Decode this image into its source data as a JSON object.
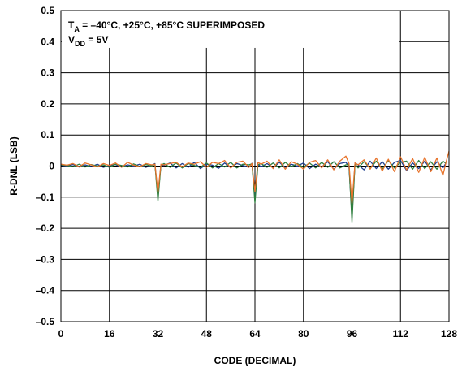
{
  "chart_data": {
    "type": "line",
    "title": "",
    "xlabel": "CODE (DECIMAL)",
    "ylabel": "R-DNL (LSB)",
    "xlim": [
      0,
      128
    ],
    "ylim": [
      -0.5,
      0.5
    ],
    "xticks": [
      0,
      16,
      32,
      48,
      64,
      80,
      96,
      112,
      128
    ],
    "xtick_labels": [
      "0",
      "16",
      "32",
      "48",
      "64",
      "80",
      "96",
      "112",
      "128"
    ],
    "yticks": [
      0.5,
      0.4,
      0.3,
      0.2,
      0.1,
      0,
      -0.1,
      -0.2,
      -0.3,
      -0.4,
      -0.5
    ],
    "ytick_labels": [
      "0.5",
      "0.4",
      "0.3",
      "0.2",
      "0.1",
      "0",
      "–0.1",
      "–0.2",
      "–0.3",
      "–0.4",
      "–0.5"
    ],
    "grid": true,
    "annotation": {
      "line1_prefix": "T",
      "line1_sub": "A",
      "line1_rest": " = –40°C, +25°C, +85°C SUPERIMPOSED",
      "line2_prefix": "V",
      "line2_sub": "DD",
      "line2_rest": " = 5V"
    },
    "series": [
      {
        "color": "#1f3f8f",
        "x": [
          0,
          2,
          4,
          6,
          8,
          10,
          12,
          14,
          16,
          18,
          20,
          22,
          24,
          26,
          28,
          30,
          31,
          32,
          33,
          34,
          36,
          38,
          40,
          42,
          44,
          46,
          48,
          50,
          52,
          54,
          56,
          58,
          60,
          62,
          63,
          64,
          65,
          66,
          68,
          70,
          72,
          74,
          76,
          78,
          80,
          82,
          84,
          86,
          88,
          90,
          92,
          94,
          95,
          96,
          97,
          98,
          100,
          102,
          104,
          106,
          108,
          110,
          112,
          114,
          116,
          118,
          120,
          122,
          124,
          126,
          127
        ],
        "y": [
          0.003,
          0.0,
          0.005,
          -0.003,
          0.004,
          -0.002,
          0.006,
          -0.004,
          0.002,
          0.005,
          -0.003,
          0.004,
          0.0,
          0.006,
          -0.004,
          0.003,
          0.008,
          -0.095,
          0.004,
          0.002,
          0.01,
          -0.006,
          0.008,
          -0.004,
          0.012,
          -0.008,
          0.006,
          0.003,
          -0.007,
          0.01,
          -0.005,
          0.008,
          0.002,
          -0.004,
          0.009,
          -0.1,
          0.006,
          -0.002,
          0.008,
          -0.006,
          0.012,
          -0.004,
          0.006,
          0.0,
          0.01,
          -0.008,
          0.006,
          -0.003,
          0.014,
          -0.01,
          0.008,
          0.012,
          -0.002,
          -0.16,
          0.01,
          0.004,
          -0.012,
          0.016,
          -0.008,
          0.014,
          -0.01,
          0.012,
          0.018,
          -0.014,
          0.01,
          -0.008,
          0.016,
          -0.012,
          0.014,
          -0.006,
          0.01
        ]
      },
      {
        "color": "#2f7f3f",
        "x": [
          0,
          2,
          4,
          6,
          8,
          10,
          12,
          14,
          16,
          18,
          20,
          22,
          24,
          26,
          28,
          30,
          31,
          32,
          33,
          34,
          36,
          38,
          40,
          42,
          44,
          46,
          48,
          50,
          52,
          54,
          56,
          58,
          60,
          62,
          63,
          64,
          65,
          66,
          68,
          70,
          72,
          74,
          76,
          78,
          80,
          82,
          84,
          86,
          88,
          90,
          92,
          94,
          95,
          96,
          97,
          98,
          100,
          102,
          104,
          106,
          108,
          110,
          112,
          114,
          116,
          118,
          120,
          122,
          124,
          126,
          127
        ],
        "y": [
          0.004,
          0.002,
          -0.002,
          0.006,
          -0.003,
          0.005,
          0.0,
          0.004,
          -0.004,
          0.006,
          0.002,
          -0.003,
          0.007,
          -0.002,
          0.005,
          0.0,
          0.006,
          -0.112,
          0.003,
          0.008,
          -0.004,
          0.01,
          -0.006,
          0.008,
          0.002,
          -0.004,
          0.01,
          -0.006,
          0.008,
          -0.003,
          0.012,
          -0.006,
          0.006,
          0.004,
          0.007,
          -0.118,
          0.004,
          0.008,
          -0.004,
          0.01,
          -0.006,
          0.012,
          -0.002,
          0.008,
          -0.004,
          0.01,
          -0.006,
          0.012,
          -0.004,
          0.014,
          -0.006,
          0.004,
          0.006,
          -0.18,
          0.008,
          -0.006,
          0.014,
          -0.008,
          0.016,
          -0.01,
          0.018,
          -0.006,
          0.012,
          0.016,
          -0.01,
          0.018,
          -0.008,
          0.014,
          -0.01,
          0.016,
          0.008
        ]
      },
      {
        "color": "#e8742c",
        "x": [
          0,
          2,
          4,
          6,
          8,
          10,
          12,
          14,
          16,
          18,
          20,
          22,
          24,
          26,
          28,
          30,
          31,
          32,
          33,
          34,
          36,
          38,
          40,
          42,
          44,
          46,
          48,
          50,
          52,
          54,
          56,
          58,
          60,
          62,
          63,
          64,
          65,
          66,
          68,
          70,
          72,
          74,
          76,
          78,
          80,
          82,
          84,
          86,
          88,
          90,
          92,
          94,
          95,
          96,
          97,
          98,
          100,
          102,
          104,
          106,
          108,
          110,
          112,
          114,
          116,
          118,
          120,
          122,
          124,
          126,
          127,
          128
        ],
        "y": [
          0.006,
          0.003,
          0.008,
          -0.002,
          0.01,
          0.004,
          -0.003,
          0.008,
          0.002,
          0.01,
          -0.004,
          0.012,
          0.003,
          -0.002,
          0.008,
          0.004,
          0.006,
          -0.085,
          0.006,
          0.004,
          0.008,
          0.012,
          -0.002,
          0.01,
          0.006,
          0.014,
          -0.004,
          0.012,
          0.008,
          0.018,
          -0.006,
          0.012,
          0.016,
          -0.004,
          0.008,
          -0.082,
          0.012,
          0.006,
          0.016,
          -0.008,
          0.02,
          -0.01,
          0.014,
          0.006,
          -0.01,
          0.012,
          0.018,
          -0.006,
          0.02,
          -0.012,
          0.016,
          0.032,
          0.008,
          -0.12,
          0.01,
          0.004,
          0.02,
          -0.01,
          0.026,
          -0.016,
          0.022,
          -0.018,
          0.03,
          -0.012,
          0.024,
          -0.02,
          0.028,
          -0.018,
          0.026,
          -0.03,
          0.012,
          0.048
        ]
      }
    ]
  }
}
